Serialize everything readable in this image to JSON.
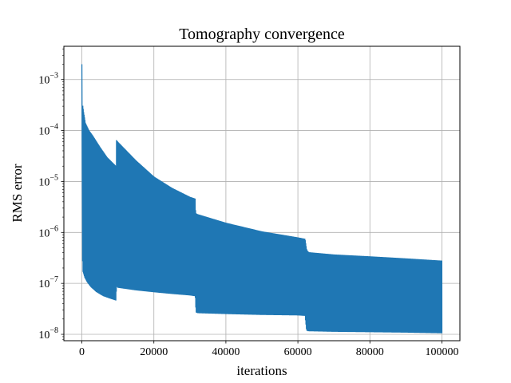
{
  "chart_data": {
    "type": "line",
    "title": "Tomography convergence",
    "xlabel": "iterations",
    "ylabel": "RMS error",
    "yscale": "log",
    "grid": true,
    "xlim": [
      -5000,
      105000
    ],
    "ylim": [
      7.5e-09,
      0.0045
    ],
    "xticks": [
      0,
      20000,
      40000,
      60000,
      80000,
      100000
    ],
    "xtick_labels": [
      "0",
      "20000",
      "40000",
      "60000",
      "80000",
      "100000"
    ],
    "yticks": [
      1e-08,
      1e-07,
      1e-06,
      1e-05,
      0.0001,
      0.001
    ],
    "ytick_labels": [
      {
        "base": "10",
        "exp": "−8"
      },
      {
        "base": "10",
        "exp": "−7"
      },
      {
        "base": "10",
        "exp": "−6"
      },
      {
        "base": "10",
        "exp": "−5"
      },
      {
        "base": "10",
        "exp": "−4"
      },
      {
        "base": "10",
        "exp": "−3"
      }
    ],
    "line_color": "#1f77b4",
    "series": [
      {
        "name": "",
        "note": "rapid oscillation between upper and lower envelopes",
        "upper_envelope": {
          "x": [
            0,
            200,
            500,
            1000,
            2000,
            3000,
            5000,
            7000,
            9500,
            9600,
            10000,
            15000,
            20000,
            25000,
            30000,
            31500,
            31600,
            32000,
            40000,
            50000,
            60000,
            62000,
            62400,
            62600,
            63000,
            70000,
            80000,
            90000,
            100000
          ],
          "y": [
            0.002,
            0.00033,
            0.00023,
            0.00014,
            0.0001,
            8e-05,
            4.8e-05,
            3e-05,
            2e-05,
            6.5e-05,
            6e-05,
            2.6e-05,
            1.25e-05,
            7.5e-06,
            5e-06,
            4.6e-06,
            2.4e-06,
            2.3e-06,
            1.55e-06,
            1.05e-06,
            8e-07,
            7.5e-07,
            4.8e-07,
            4.4e-07,
            4.1e-07,
            3.7e-07,
            3.4e-07,
            3.1e-07,
            2.8e-07
          ]
        },
        "lower_envelope": {
          "x": [
            0,
            300,
            800,
            1500,
            2500,
            4000,
            6000,
            8000,
            9500,
            9600,
            10000,
            15000,
            20000,
            25000,
            30000,
            31500,
            31700,
            32200,
            40000,
            50000,
            60000,
            62000,
            62400,
            62800,
            70000,
            80000,
            90000,
            100000
          ],
          "y": [
            7e-07,
            1.7e-07,
            1.3e-07,
            1.05e-07,
            8.5e-08,
            6.8e-08,
            5.6e-08,
            5e-08,
            4.6e-08,
            9e-08,
            8.2e-08,
            7.3e-08,
            6.7e-08,
            6.2e-08,
            5.8e-08,
            5.6e-08,
            2.7e-08,
            2.6e-08,
            2.5e-08,
            2.4e-08,
            2.35e-08,
            2.3e-08,
            1.2e-08,
            1.15e-08,
            1.12e-08,
            1.1e-08,
            1.08e-08,
            1.05e-08
          ]
        }
      }
    ]
  }
}
